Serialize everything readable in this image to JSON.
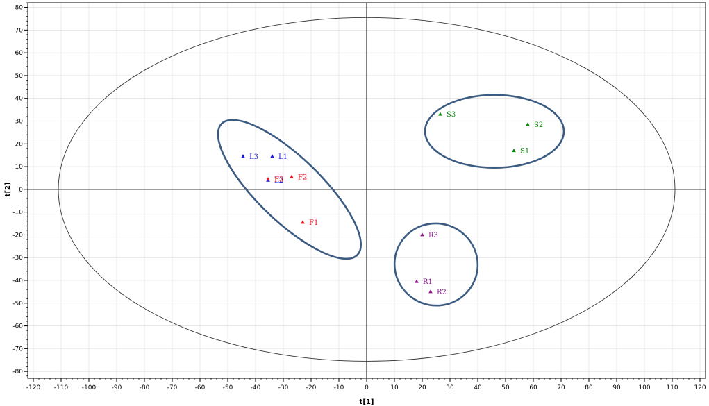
{
  "chart_data": {
    "type": "scatter",
    "xlabel": "t[1]",
    "ylabel": "t[2]",
    "xlim": [
      -122,
      122
    ],
    "ylim": [
      -83,
      82
    ],
    "xticks": [
      -120,
      -110,
      -100,
      -90,
      -80,
      -70,
      -60,
      -50,
      -40,
      -30,
      -20,
      -10,
      0,
      10,
      20,
      30,
      40,
      50,
      60,
      70,
      80,
      90,
      100,
      110,
      120
    ],
    "yticks": [
      80,
      70,
      60,
      50,
      40,
      30,
      20,
      10,
      0,
      -10,
      -20,
      -30,
      -40,
      -50,
      -60,
      -70,
      -80
    ],
    "grid": true,
    "colors": {
      "F": "#e8141e",
      "L": "#1a1ad6",
      "S": "#0a8a0a",
      "R": "#8a1a8a",
      "cluster_ellipse": "#3b5b82",
      "confidence_ellipse": "#333333",
      "grid": "#d9d9d9"
    },
    "points": [
      {
        "label": "L1",
        "group": "L",
        "x": -34,
        "y": 14.5
      },
      {
        "label": "L2",
        "group": "L",
        "x": -35.5,
        "y": 4
      },
      {
        "label": "L3",
        "group": "L",
        "x": -44.5,
        "y": 14.5
      },
      {
        "label": "F1",
        "group": "F",
        "x": -23,
        "y": -14.5
      },
      {
        "label": "F2",
        "group": "F",
        "x": -27,
        "y": 5.5
      },
      {
        "label": "F3",
        "group": "F",
        "x": -35.5,
        "y": 4.5
      },
      {
        "label": "S1",
        "group": "S",
        "x": 53,
        "y": 17
      },
      {
        "label": "S2",
        "group": "S",
        "x": 58,
        "y": 28.5
      },
      {
        "label": "S3",
        "group": "S",
        "x": 26.5,
        "y": 33
      },
      {
        "label": "R1",
        "group": "R",
        "x": 18,
        "y": -40.5
      },
      {
        "label": "R2",
        "group": "R",
        "x": 23,
        "y": -45
      },
      {
        "label": "R3",
        "group": "R",
        "x": 20,
        "y": -20
      }
    ],
    "confidence_ellipse": {
      "cx": 0,
      "cy": 0,
      "rx": 111,
      "ry": 75.5
    },
    "cluster_ellipses": [
      {
        "name": "L-F",
        "cx": -27.8,
        "cy": 0,
        "rx": 34,
        "ry": 14,
        "angle_deg": -44
      },
      {
        "name": "S",
        "cx": 46,
        "cy": 25.5,
        "rx": 25,
        "ry": 16,
        "angle_deg": 0
      },
      {
        "name": "R",
        "cx": 25,
        "cy": -33,
        "rx": 15,
        "ry": 18,
        "angle_deg": -22
      }
    ]
  }
}
